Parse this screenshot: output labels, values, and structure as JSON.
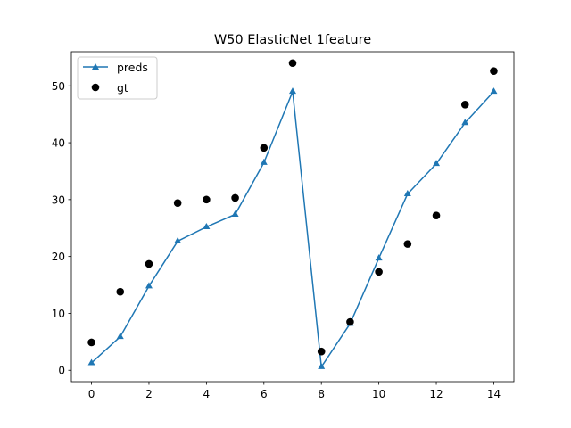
{
  "chart_data": {
    "type": "line",
    "title": "W50 ElasticNet 1feature",
    "xlabel": "",
    "ylabel": "",
    "xlim": [
      -0.7,
      14.7
    ],
    "ylim": [
      -2,
      56
    ],
    "x_ticks": [
      0,
      2,
      4,
      6,
      8,
      10,
      12,
      14
    ],
    "y_ticks": [
      0,
      10,
      20,
      30,
      40,
      50
    ],
    "grid": false,
    "legend_position": "top-left",
    "series": [
      {
        "name": "preds",
        "style": "line-triangle",
        "color": "#1f77b4",
        "x": [
          0,
          1,
          2,
          3,
          4,
          5,
          6,
          7,
          8,
          9,
          10,
          11,
          12,
          13,
          14
        ],
        "y": [
          1.3,
          5.9,
          14.8,
          22.7,
          25.2,
          27.4,
          36.5,
          49.0,
          0.6,
          8.2,
          19.7,
          31.0,
          36.3,
          43.5,
          49.0
        ]
      },
      {
        "name": "gt",
        "style": "scatter-circle",
        "color": "#000000",
        "x": [
          0,
          1,
          2,
          3,
          4,
          5,
          6,
          7,
          8,
          9,
          10,
          11,
          12,
          13,
          14
        ],
        "y": [
          4.9,
          13.8,
          18.7,
          29.4,
          30.0,
          30.3,
          39.1,
          54.0,
          3.3,
          8.5,
          17.3,
          22.2,
          27.2,
          46.7,
          52.6
        ]
      }
    ]
  }
}
